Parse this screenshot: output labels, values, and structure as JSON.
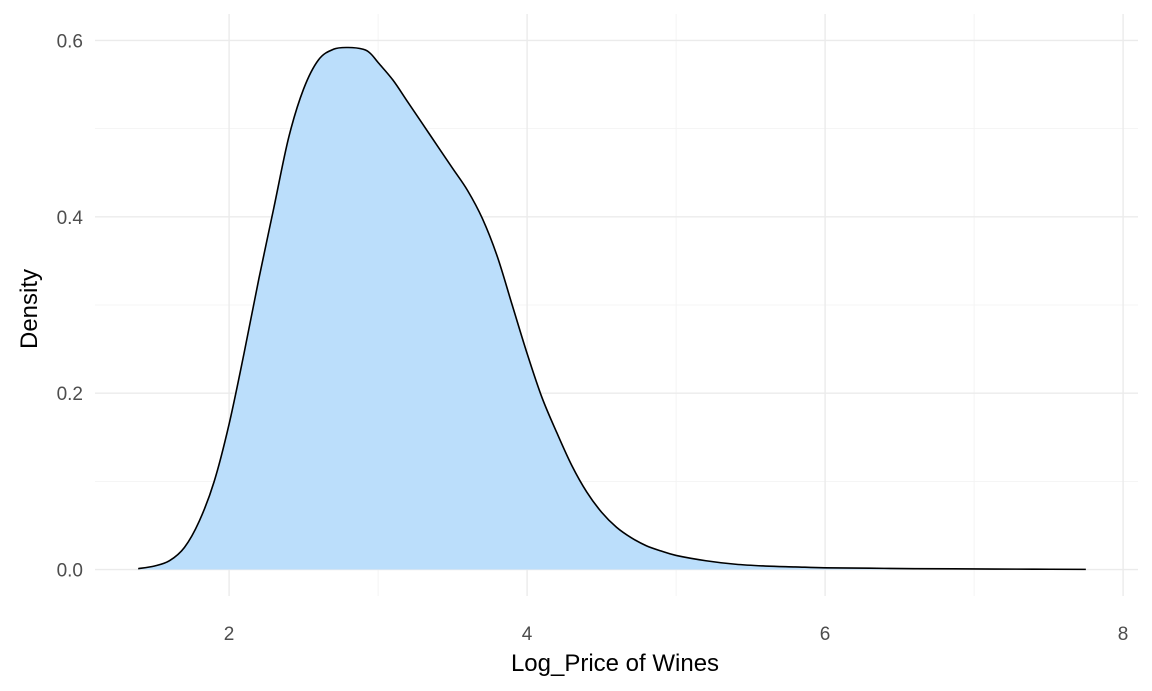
{
  "chart_data": {
    "type": "area",
    "title": "",
    "xlabel": "Log_Price of Wines",
    "ylabel": "Density",
    "xlim": [
      1.1,
      8.1
    ],
    "ylim": [
      -0.03,
      0.63
    ],
    "x_ticks": [
      2,
      4,
      6,
      8
    ],
    "y_ticks": [
      0.0,
      0.2,
      0.4,
      0.6
    ],
    "x_tick_labels": [
      "2",
      "4",
      "6",
      "8"
    ],
    "y_tick_labels": [
      "0.0",
      "0.2",
      "0.4",
      "0.6"
    ],
    "x_minor_ticks": [
      3,
      5,
      7
    ],
    "y_minor_ticks": [
      0.1,
      0.3,
      0.5
    ],
    "grid": true,
    "legend": false,
    "fill_color": "#bbdefb",
    "line_color": "#000000",
    "series": [
      {
        "x": [
          1.39,
          1.5,
          1.6,
          1.7,
          1.8,
          1.9,
          2.0,
          2.1,
          2.2,
          2.3,
          2.4,
          2.5,
          2.6,
          2.7,
          2.8,
          2.9,
          2.95,
          3.0,
          3.1,
          3.2,
          3.3,
          3.4,
          3.5,
          3.6,
          3.7,
          3.8,
          3.9,
          4.0,
          4.1,
          4.2,
          4.3,
          4.4,
          4.5,
          4.6,
          4.7,
          4.8,
          4.9,
          5.0,
          5.2,
          5.4,
          5.6,
          5.8,
          6.0,
          6.3,
          6.6,
          7.0,
          7.4,
          7.75
        ],
        "y": [
          0.001,
          0.004,
          0.01,
          0.025,
          0.055,
          0.1,
          0.165,
          0.245,
          0.33,
          0.41,
          0.49,
          0.545,
          0.578,
          0.59,
          0.592,
          0.59,
          0.585,
          0.575,
          0.555,
          0.53,
          0.505,
          0.48,
          0.455,
          0.43,
          0.398,
          0.355,
          0.3,
          0.245,
          0.195,
          0.155,
          0.118,
          0.088,
          0.065,
          0.048,
          0.036,
          0.027,
          0.021,
          0.016,
          0.01,
          0.006,
          0.004,
          0.003,
          0.002,
          0.0015,
          0.001,
          0.0007,
          0.0004,
          0.0002
        ]
      }
    ]
  }
}
